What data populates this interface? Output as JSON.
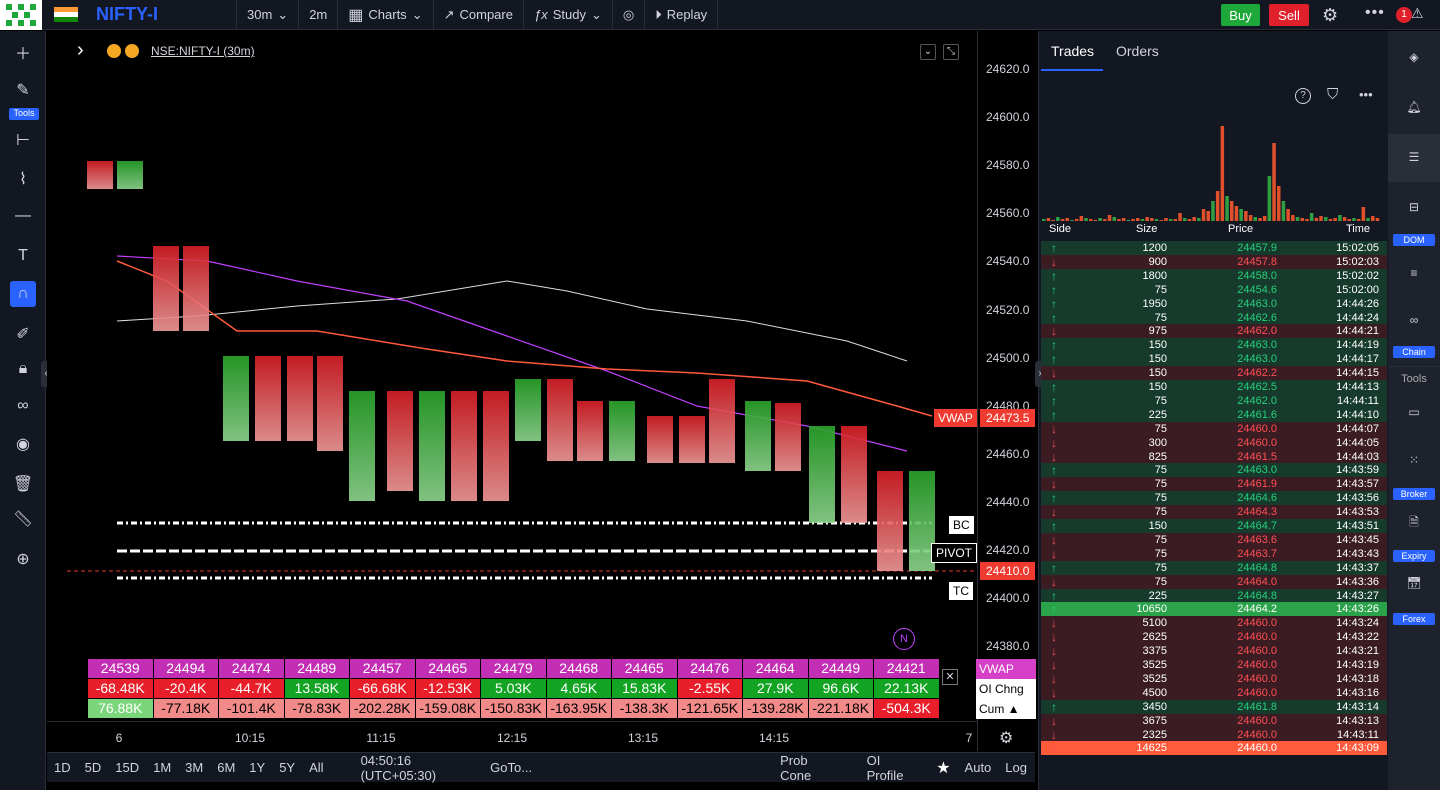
{
  "topbar": {
    "symbol": "NIFTY-I",
    "interval": "30m",
    "interval2": "2m",
    "charts": "Charts",
    "compare": "Compare",
    "study": "Study",
    "replay": "Replay",
    "buy": "Buy",
    "sell": "Sell",
    "notif": "1"
  },
  "left": {
    "tools_label": "Tools"
  },
  "chart_header": {
    "symbol": "NSE:NIFTY-I (30m)"
  },
  "price_axis": [
    "24620.0",
    "24600.0",
    "24580.0",
    "24560.0",
    "24540.0",
    "24520.0",
    "24500.0",
    "24480.0",
    "24460.0",
    "24440.0",
    "24420.0",
    "24400.0",
    "24380.0"
  ],
  "tags": {
    "vwap": "VWAP",
    "vwap_price": "24473.5",
    "bc": "BC",
    "pivot": "PIVOT",
    "tc": "TC",
    "last_price": "24410.0",
    "n": "N"
  },
  "time_axis": [
    "6",
    "10:15",
    "11:15",
    "12:15",
    "13:15",
    "14:15",
    "7"
  ],
  "stats": {
    "vwap_row": [
      "24539",
      "24494",
      "24474",
      "24489",
      "24457",
      "24465",
      "24479",
      "24468",
      "24465",
      "24476",
      "24464",
      "24449",
      "24421"
    ],
    "oi_row": [
      "-68.48K",
      "-20.4K",
      "-44.7K",
      "13.58K",
      "-66.68K",
      "-12.53K",
      "5.03K",
      "4.65K",
      "15.83K",
      "-2.55K",
      "27.9K",
      "96.6K",
      "22.13K"
    ],
    "cum_row": [
      "76.88K",
      "-77.18K",
      "-101.4K",
      "-78.83K",
      "-202.28K",
      "-159.08K",
      "-150.83K",
      "-163.95K",
      "-138.3K",
      "-121.65K",
      "-139.28K",
      "-221.18K",
      "-504.3K"
    ],
    "labels": [
      "VWAP",
      "OI Chng",
      "Cum ▲"
    ]
  },
  "bottom": {
    "ranges": [
      "1D",
      "5D",
      "15D",
      "1M",
      "3M",
      "6M",
      "1Y",
      "5Y",
      "All"
    ],
    "clock": "04:50:16 (UTC+05:30)",
    "goto": "GoTo...",
    "prob": "Prob Cone",
    "oi": "OI Profile",
    "auto": "Auto",
    "log": "Log"
  },
  "panel": {
    "tabs": [
      "Trades",
      "Orders"
    ],
    "cols": [
      "Side",
      "Size",
      "Price",
      "Time"
    ]
  },
  "trades": [
    [
      "up",
      "1200",
      "24457.9",
      "15:02:05"
    ],
    [
      "down",
      "900",
      "24457.8",
      "15:02:03"
    ],
    [
      "up",
      "1800",
      "24458.0",
      "15:02:02"
    ],
    [
      "up",
      "75",
      "24454.6",
      "15:02:00"
    ],
    [
      "up",
      "1950",
      "24463.0",
      "14:44:26"
    ],
    [
      "up",
      "75",
      "24462.6",
      "14:44:24"
    ],
    [
      "down",
      "975",
      "24462.0",
      "14:44:21"
    ],
    [
      "up",
      "150",
      "24463.0",
      "14:44:19"
    ],
    [
      "up",
      "150",
      "24463.0",
      "14:44:17"
    ],
    [
      "down",
      "150",
      "24462.2",
      "14:44:15"
    ],
    [
      "up",
      "150",
      "24462.5",
      "14:44:13"
    ],
    [
      "up",
      "75",
      "24462.0",
      "14:44:11"
    ],
    [
      "up",
      "225",
      "24461.6",
      "14:44:10"
    ],
    [
      "down",
      "75",
      "24460.0",
      "14:44:07"
    ],
    [
      "down",
      "300",
      "24460.0",
      "14:44:05"
    ],
    [
      "down",
      "825",
      "24461.5",
      "14:44:03"
    ],
    [
      "up",
      "75",
      "24463.0",
      "14:43:59"
    ],
    [
      "down",
      "75",
      "24461.9",
      "14:43:57"
    ],
    [
      "up",
      "75",
      "24464.6",
      "14:43:56"
    ],
    [
      "down",
      "75",
      "24464.3",
      "14:43:53"
    ],
    [
      "up",
      "150",
      "24464.7",
      "14:43:51"
    ],
    [
      "down",
      "75",
      "24463.6",
      "14:43:45"
    ],
    [
      "down",
      "75",
      "24463.7",
      "14:43:43"
    ],
    [
      "up",
      "75",
      "24464.8",
      "14:43:37"
    ],
    [
      "down",
      "75",
      "24464.0",
      "14:43:36"
    ],
    [
      "up",
      "225",
      "24464.8",
      "14:43:27"
    ],
    [
      "up",
      "10650",
      "24464.2",
      "14:43:26"
    ],
    [
      "down",
      "5100",
      "24460.0",
      "14:43:24"
    ],
    [
      "down",
      "2625",
      "24460.0",
      "14:43:22"
    ],
    [
      "down",
      "3375",
      "24460.0",
      "14:43:21"
    ],
    [
      "down",
      "3525",
      "24460.0",
      "14:43:19"
    ],
    [
      "down",
      "3525",
      "24460.0",
      "14:43:18"
    ],
    [
      "down",
      "4500",
      "24460.0",
      "14:43:16"
    ],
    [
      "up",
      "3450",
      "24461.8",
      "14:43:14"
    ],
    [
      "down",
      "3675",
      "24460.0",
      "14:43:13"
    ],
    [
      "down",
      "2325",
      "24460.0",
      "14:43:11"
    ],
    [
      "down",
      "14625",
      "24460.0",
      "14:43:09"
    ]
  ],
  "rtools": {
    "dom": "DOM",
    "chain": "Chain",
    "tools": "Tools",
    "broker": "Broker",
    "expiry": "Expiry",
    "forex": "Forex"
  },
  "colors": {
    "up": "#26a69a",
    "down": "#ef5350",
    "accent": "#2962ff"
  }
}
